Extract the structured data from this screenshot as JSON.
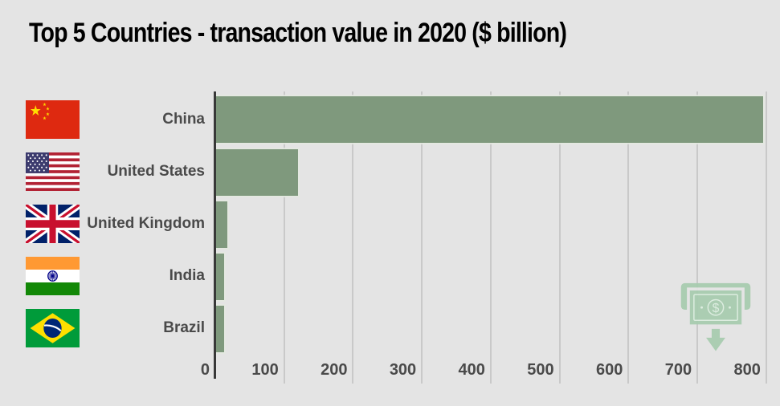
{
  "title": "Top 5 Countries - transaction value in 2020 ($ billion)",
  "chart_data": {
    "type": "bar",
    "orientation": "horizontal",
    "title": "Top 5 Countries - transaction value in 2020 ($ billion)",
    "categories": [
      "China",
      "United States",
      "United Kingdom",
      "India",
      "Brazil"
    ],
    "values": [
      795,
      120,
      18,
      13,
      13
    ],
    "unit": "$ billion",
    "xlabel": "",
    "ylabel": "",
    "xlim": [
      0,
      820
    ],
    "x_ticks": [
      0,
      100,
      200,
      300,
      400,
      500,
      600,
      700,
      800
    ],
    "grid": true,
    "legend": "none",
    "bar_color": "#7f997d"
  },
  "rows": [
    {
      "label": "China",
      "flag": "china-flag"
    },
    {
      "label": "United States",
      "flag": "united-states-flag"
    },
    {
      "label": "United Kingdom",
      "flag": "united-kingdom-flag"
    },
    {
      "label": "India",
      "flag": "india-flag"
    },
    {
      "label": "Brazil",
      "flag": "brazil-flag"
    }
  ],
  "icons": {
    "money": "banknote-with-down-arrow"
  },
  "colors": {
    "background": "#e4e4e4",
    "bar": "#7f997d",
    "bar_outline": "#e4e9e1",
    "axis_line": "#383838",
    "gridline": "#c9c9c9",
    "label_text": "#4a4a4a",
    "title_text": "#000000",
    "money_icon": "#a8ccb0"
  }
}
